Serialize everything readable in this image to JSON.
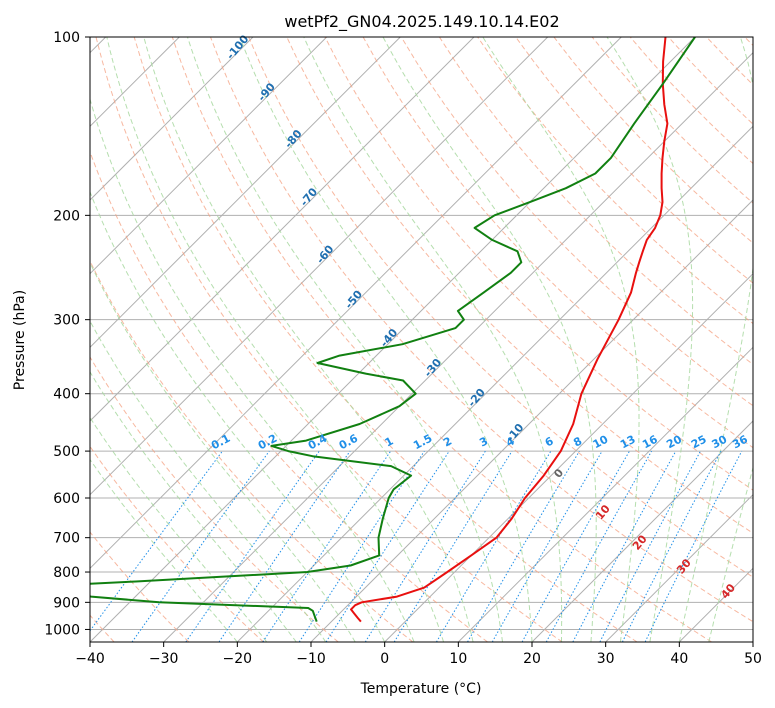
{
  "chart_data": {
    "type": "skew-t",
    "title": "wetPf2_GN04.2025.149.10.14.E02",
    "xlabel": "Temperature (°C)",
    "ylabel": "Pressure (hPa)",
    "xlim": [
      -40,
      50
    ],
    "ylim": [
      1050,
      100
    ],
    "x_ticks": [
      "−40",
      "−30",
      "−20",
      "−10",
      "0",
      "10",
      "20",
      "30",
      "40",
      "50"
    ],
    "y_ticks": [
      "100",
      "200",
      "300",
      "400",
      "500",
      "600",
      "700",
      "800",
      "900",
      "1000"
    ],
    "grid": true,
    "series": [
      {
        "role": "temperature",
        "color": "#e8100f",
        "points": [
          [
            970,
            -6
          ],
          [
            955,
            -7
          ],
          [
            940,
            -8
          ],
          [
            925,
            -9
          ],
          [
            910,
            -9
          ],
          [
            900,
            -8.5
          ],
          [
            880,
            -4.5
          ],
          [
            850,
            -2
          ],
          [
            800,
            -1
          ],
          [
            750,
            0
          ],
          [
            700,
            1
          ],
          [
            650,
            0.5
          ],
          [
            600,
            -0.5
          ],
          [
            550,
            -1
          ],
          [
            500,
            -2
          ],
          [
            450,
            -4
          ],
          [
            400,
            -7
          ],
          [
            350,
            -9.5
          ],
          [
            300,
            -12
          ],
          [
            270,
            -14
          ],
          [
            250,
            -16
          ],
          [
            240,
            -17
          ],
          [
            230,
            -18
          ],
          [
            220,
            -19
          ],
          [
            210,
            -19.5
          ],
          [
            200,
            -20.5
          ],
          [
            190,
            -22
          ],
          [
            180,
            -24
          ],
          [
            170,
            -26
          ],
          [
            160,
            -28
          ],
          [
            150,
            -30
          ],
          [
            140,
            -32
          ],
          [
            130,
            -35
          ],
          [
            120,
            -38
          ],
          [
            110,
            -41
          ],
          [
            100,
            -44
          ]
        ]
      },
      {
        "role": "dewpoint",
        "color": "#118011",
        "points": [
          [
            970,
            -12
          ],
          [
            950,
            -13
          ],
          [
            930,
            -14
          ],
          [
            920,
            -15
          ],
          [
            900,
            -36
          ],
          [
            880,
            -46
          ],
          [
            860,
            -51
          ],
          [
            845,
            -54
          ],
          [
            830,
            -42
          ],
          [
            800,
            -20
          ],
          [
            780,
            -15
          ],
          [
            750,
            -12.5
          ],
          [
            700,
            -15
          ],
          [
            650,
            -17
          ],
          [
            600,
            -19
          ],
          [
            580,
            -19.5
          ],
          [
            550,
            -19
          ],
          [
            530,
            -23
          ],
          [
            510,
            -35
          ],
          [
            500,
            -39
          ],
          [
            490,
            -42
          ],
          [
            480,
            -38
          ],
          [
            450,
            -33
          ],
          [
            420,
            -30
          ],
          [
            400,
            -29.5
          ],
          [
            380,
            -33
          ],
          [
            370,
            -39
          ],
          [
            355,
            -47
          ],
          [
            345,
            -45
          ],
          [
            330,
            -38
          ],
          [
            310,
            -33
          ],
          [
            300,
            -33
          ],
          [
            290,
            -35
          ],
          [
            270,
            -34
          ],
          [
            250,
            -33
          ],
          [
            240,
            -33
          ],
          [
            230,
            -35
          ],
          [
            220,
            -40
          ],
          [
            210,
            -44
          ],
          [
            200,
            -43
          ],
          [
            190,
            -40
          ],
          [
            180,
            -37
          ],
          [
            170,
            -35
          ],
          [
            160,
            -35
          ],
          [
            140,
            -36.5
          ],
          [
            120,
            -38
          ],
          [
            100,
            -40
          ]
        ]
      }
    ],
    "background": {
      "isotherms_color": "#b0b0b0",
      "dry_adiabats_color": "#f4a080",
      "moist_adiabats_color": "#a8d8a0",
      "mixing_ratio_color": "#1f8fe8",
      "theta_labels": [
        "-100",
        "-90",
        "-80",
        "-70",
        "-60",
        "-50",
        "-40",
        "-30",
        "-20",
        "-10"
      ],
      "mixing_ratio_labels": [
        "0.1",
        "0.2",
        "0.4",
        "0.6",
        "1",
        "1.5",
        "2",
        "3",
        "4",
        "6",
        "8",
        "10",
        "13",
        "16",
        "20",
        "25",
        "30",
        "36"
      ],
      "thetae_labels": [
        "0",
        "10",
        "20",
        "30",
        "40"
      ]
    }
  }
}
